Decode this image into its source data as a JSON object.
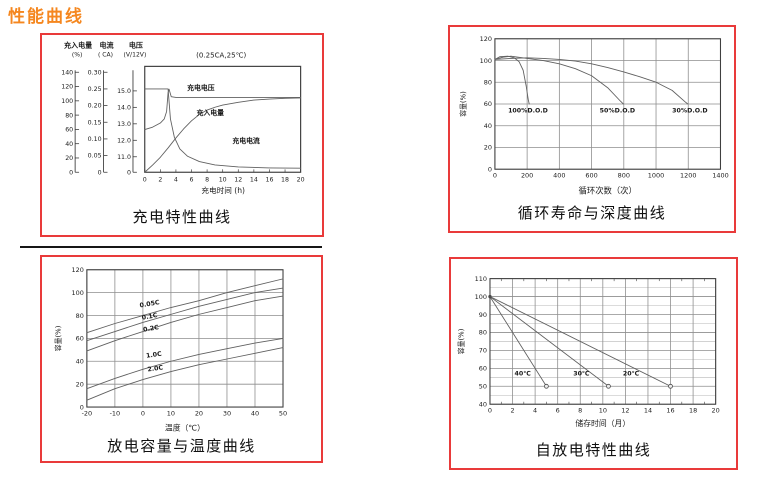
{
  "page": {
    "heading": "性能曲线",
    "colors": {
      "accent_orange": "#f5871f",
      "panel_border_red": "#e93a3a",
      "grid_gray": "#8e8e8e",
      "curve_gray": "#606060"
    }
  },
  "chart_data": [
    {
      "id": "charging",
      "type": "line",
      "title": "充电特性曲线",
      "annotation": "(0.25CA,25℃)",
      "xlabel": "充电时间 (h)",
      "xlim": [
        0,
        20
      ],
      "x_ticks": [
        0,
        2,
        4,
        6,
        8,
        10,
        12,
        14,
        16,
        18,
        20
      ],
      "y_axes": [
        {
          "id": "capacity",
          "title": "充入电量",
          "unit": "(%)",
          "range": [
            0,
            140
          ],
          "ticks": [
            "140",
            "120",
            "100",
            "80",
            "60",
            "40",
            "20",
            "0"
          ]
        },
        {
          "id": "current",
          "title": "电流",
          "unit": "( CA)",
          "range": [
            0,
            0.3
          ],
          "ticks": [
            "0.30",
            "0.25",
            "0.20",
            "0.15",
            "0.10",
            "0.05",
            "0"
          ]
        },
        {
          "id": "voltage",
          "title": "电压",
          "unit": "(V/12V)",
          "range": [
            11,
            15
          ],
          "ticks": [
            "15.0",
            "14.0",
            "13.0",
            "12.0",
            "11.0",
            "0"
          ]
        }
      ],
      "series": [
        {
          "name": "充电电压",
          "axis": "voltage",
          "x": [
            0,
            1,
            2,
            2.5,
            2.8,
            3.0,
            3.12,
            3.4,
            4,
            6,
            20
          ],
          "y": [
            12.65,
            12.8,
            13.05,
            13.3,
            13.75,
            14.9,
            15.1,
            14.65,
            14.6,
            14.6,
            14.6
          ],
          "label_at": {
            "x": 7.2,
            "y": 15.05
          }
        },
        {
          "name": "充入电量",
          "axis": "capacity",
          "x": [
            0,
            1,
            2,
            3,
            4,
            5,
            6,
            7,
            8,
            9,
            10,
            12,
            14,
            16,
            18,
            20
          ],
          "y": [
            0,
            10,
            21,
            34,
            48,
            61,
            72,
            81,
            87,
            91,
            94,
            98,
            101,
            102.5,
            103.5,
            104
          ],
          "label_at": {
            "x": 8.4,
            "y": 80
          }
        },
        {
          "name": "充电电流",
          "axis": "current",
          "x": [
            0,
            3,
            3.3,
            3.8,
            4.5,
            5.5,
            7,
            9,
            12,
            16,
            20
          ],
          "y": [
            0.25,
            0.25,
            0.16,
            0.105,
            0.07,
            0.048,
            0.032,
            0.022,
            0.016,
            0.013,
            0.012
          ],
          "label_at": {
            "x": 13,
            "y": 0.088
          }
        }
      ]
    },
    {
      "id": "cycle-life",
      "type": "line",
      "title": "循环寿命与深度曲线",
      "xlabel": "循环次数（次）",
      "ylabel": "容量(%)",
      "xlim": [
        0,
        1400
      ],
      "ylim": [
        0,
        120
      ],
      "x_ticks": [
        0,
        200,
        400,
        600,
        800,
        1000,
        1200,
        1400
      ],
      "y_ticks": [
        120,
        100,
        80,
        60,
        40,
        20,
        0
      ],
      "grid": true,
      "series": [
        {
          "name": "100%D.O.D",
          "x": [
            0,
            30,
            80,
            120,
            150,
            175,
            195,
            207,
            213
          ],
          "y": [
            101,
            103.5,
            104,
            102.5,
            99,
            91,
            76,
            64,
            60
          ],
          "label_at": {
            "x": 205,
            "y": 52
          }
        },
        {
          "name": "50%D.O.D",
          "x": [
            0,
            50,
            100,
            200,
            300,
            400,
            500,
            600,
            700,
            780,
            797
          ],
          "y": [
            101,
            103,
            104,
            102,
            100,
            97,
            92.5,
            86,
            75,
            62.5,
            60
          ],
          "label_at": {
            "x": 760,
            "y": 52
          }
        },
        {
          "name": "30%D.O.D",
          "x": [
            0,
            100,
            200,
            300,
            400,
            500,
            600,
            700,
            800,
            900,
            1000,
            1100,
            1180,
            1197
          ],
          "y": [
            101,
            102,
            102.5,
            102,
            101,
            99.5,
            97,
            93.5,
            89.5,
            85,
            80,
            72.5,
            62,
            60
          ],
          "label_at": {
            "x": 1210,
            "y": 52
          }
        }
      ]
    },
    {
      "id": "discharge-temperature",
      "type": "line",
      "title": "放电容量与温度曲线",
      "xlabel": "温度（℃）",
      "ylabel": "容量(%)",
      "xlim": [
        -20,
        50
      ],
      "ylim": [
        0,
        120
      ],
      "x_ticks": [
        -20,
        -10,
        0,
        10,
        20,
        30,
        40,
        50
      ],
      "y_ticks": [
        120,
        100,
        80,
        60,
        40,
        20,
        0
      ],
      "grid": true,
      "x_common": [
        -20,
        -10,
        0,
        10,
        20,
        30,
        40,
        50
      ],
      "series": [
        {
          "name": "0.05C",
          "y": [
            65,
            73,
            80,
            87,
            93,
            100,
            106,
            112
          ],
          "label_at": {
            "x": 2.5,
            "y": 88.5
          },
          "label_rotate": -10
        },
        {
          "name": "0.1C",
          "y": [
            58,
            66,
            74,
            81,
            88,
            94,
            100,
            104
          ],
          "label_at": {
            "x": 2.5,
            "y": 77.5
          },
          "label_rotate": -10
        },
        {
          "name": "0.2C",
          "y": [
            49,
            58,
            66,
            74,
            81,
            87,
            93,
            97
          ],
          "label_at": {
            "x": 3,
            "y": 67
          },
          "label_rotate": -10
        },
        {
          "name": "1.0C",
          "y": [
            16,
            25,
            33,
            40,
            46,
            51,
            56,
            60
          ],
          "label_at": {
            "x": 4,
            "y": 44
          },
          "label_rotate": -8
        },
        {
          "name": "2.0C",
          "y": [
            6,
            16,
            24,
            31,
            37,
            42,
            47,
            52
          ],
          "label_at": {
            "x": 4.5,
            "y": 32
          },
          "label_rotate": -8
        }
      ]
    },
    {
      "id": "self-discharge",
      "type": "line",
      "title": "自放电特性曲线",
      "xlabel": "储存时间（月）",
      "ylabel": "容量(%)",
      "xlim": [
        0,
        20
      ],
      "ylim": [
        40,
        110
      ],
      "x_ticks": [
        0,
        2,
        4,
        6,
        8,
        10,
        12,
        14,
        16,
        18,
        20
      ],
      "y_ticks": [
        110,
        100,
        90,
        80,
        70,
        60,
        50,
        40
      ],
      "y_minor_step": 5,
      "x_minor_ticks": 1,
      "end_marker": "circle",
      "start_marker": "dot",
      "series": [
        {
          "name": "40℃",
          "x": [
            0,
            5
          ],
          "y": [
            100,
            50
          ],
          "label_at": {
            "x": 2.9,
            "y": 56
          }
        },
        {
          "name": "30℃",
          "x": [
            0,
            10.5
          ],
          "y": [
            100,
            50
          ],
          "label_at": {
            "x": 8.1,
            "y": 56
          }
        },
        {
          "name": "20℃",
          "x": [
            0,
            16
          ],
          "y": [
            100,
            50
          ],
          "label_at": {
            "x": 12.5,
            "y": 56
          }
        }
      ]
    }
  ]
}
